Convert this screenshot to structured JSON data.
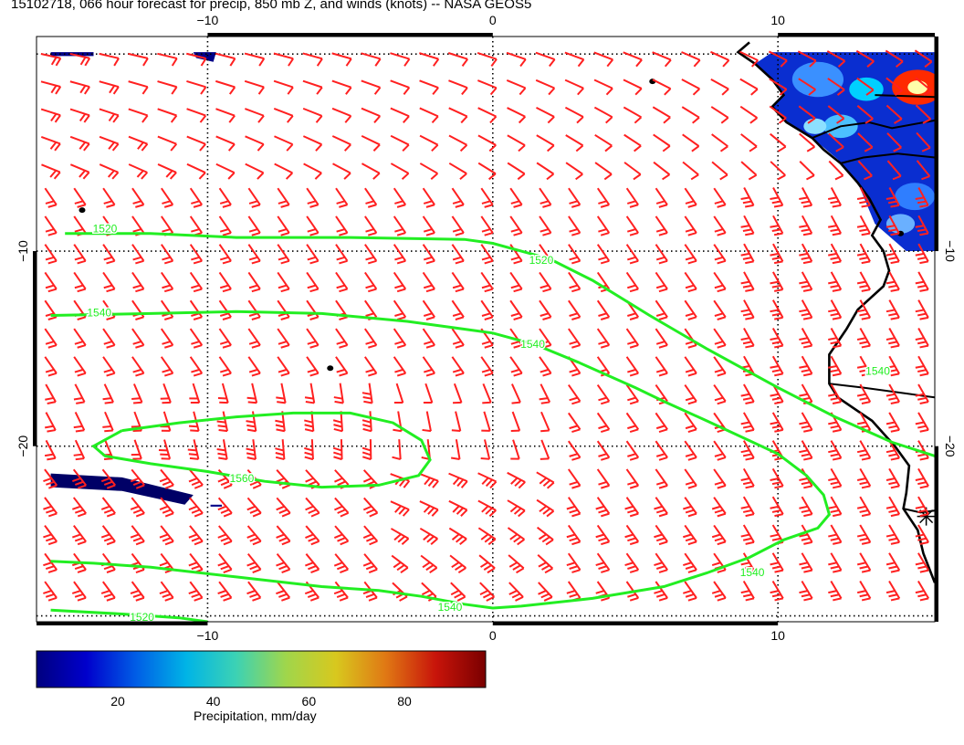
{
  "title": "15102718, 066 hour forecast for precip, 850 mb Z, and winds (knots) -- NASA GEOS5",
  "map": {
    "lon_range": [
      -16,
      15.5
    ],
    "lat_range": [
      -29,
      1
    ],
    "lon_ticks": [
      {
        "value": -10,
        "label": "−10"
      },
      {
        "value": 0,
        "label": "0"
      },
      {
        "value": 10,
        "label": "10"
      }
    ],
    "lat_ticks": [
      {
        "value": -10,
        "label": "−10"
      },
      {
        "value": -20,
        "label": "−20"
      }
    ],
    "grid_style": "dotted",
    "wind_barb_color": "#ff2020",
    "contour_color": "#22ee22",
    "coastline_color": "#000000",
    "contours": [
      {
        "label": "1520",
        "points": [
          [
            -15,
            -9.1
          ],
          [
            -12,
            -9.1
          ],
          [
            -9,
            -9.3
          ],
          [
            -5,
            -9.3
          ],
          [
            -1,
            -9.4
          ],
          [
            0,
            -9.6
          ],
          [
            2,
            -10.4
          ],
          [
            3.5,
            -11.5
          ],
          [
            5.5,
            -13.3
          ],
          [
            7.5,
            -15
          ],
          [
            10,
            -17
          ],
          [
            12,
            -18.5
          ],
          [
            14,
            -19.8
          ],
          [
            15.5,
            -20.5
          ]
        ]
      },
      {
        "label": "1540",
        "points": [
          [
            -15.5,
            -13.3
          ],
          [
            -12,
            -13.2
          ],
          [
            -9,
            -13.1
          ],
          [
            -6,
            -13.2
          ],
          [
            -3,
            -13.6
          ],
          [
            -1,
            -14
          ],
          [
            0,
            -14.2
          ],
          [
            1.5,
            -14.8
          ],
          [
            3,
            -15.7
          ],
          [
            5,
            -17
          ],
          [
            6,
            -17.7
          ],
          [
            7.5,
            -18.7
          ],
          [
            10,
            -20.4
          ],
          [
            11,
            -21.5
          ],
          [
            11.6,
            -22.5
          ],
          [
            11.8,
            -23.5
          ],
          [
            11.4,
            -24.2
          ],
          [
            10.2,
            -24.8
          ],
          [
            9,
            -25.7
          ],
          [
            7.5,
            -26.5
          ],
          [
            6,
            -27.2
          ],
          [
            3.5,
            -27.8
          ],
          [
            1,
            -28.2
          ],
          [
            0,
            -28.3
          ],
          [
            -1,
            -28.1
          ],
          [
            -2.5,
            -27.7
          ],
          [
            -4,
            -27.4
          ],
          [
            -6,
            -27.2
          ],
          [
            -9,
            -26.7
          ],
          [
            -12,
            -26.2
          ],
          [
            -14,
            -26
          ],
          [
            -15.5,
            -25.9
          ]
        ]
      },
      {
        "label": "1560",
        "points": [
          [
            -13,
            -19.2
          ],
          [
            -11,
            -18.8
          ],
          [
            -9,
            -18.5
          ],
          [
            -7,
            -18.3
          ],
          [
            -5,
            -18.3
          ],
          [
            -3.5,
            -18.8
          ],
          [
            -2.5,
            -19.7
          ],
          [
            -2.2,
            -20.7
          ],
          [
            -2.6,
            -21.5
          ],
          [
            -4,
            -22
          ],
          [
            -6,
            -22.1
          ],
          [
            -8,
            -21.8
          ],
          [
            -10,
            -21.3
          ],
          [
            -12,
            -20.9
          ],
          [
            -13.6,
            -20.5
          ],
          [
            -14,
            -20
          ],
          [
            -13,
            -19.2
          ]
        ]
      },
      {
        "label": "1520",
        "points": [
          [
            -15.5,
            -28.4
          ],
          [
            -13,
            -28.6
          ],
          [
            -11,
            -28.8
          ],
          [
            -10,
            -29
          ]
        ]
      }
    ],
    "contour_labels": [
      {
        "text": "1520",
        "at": [
          -13.6,
          -8.9
        ]
      },
      {
        "text": "1520",
        "at": [
          1.7,
          -10.5
        ]
      },
      {
        "text": "1540",
        "at": [
          -13.8,
          -13.2
        ]
      },
      {
        "text": "1540",
        "at": [
          1.4,
          -14.8
        ]
      },
      {
        "text": "1560",
        "at": [
          -8.8,
          -21.7
        ]
      },
      {
        "text": "1540",
        "at": [
          -1.5,
          -28.3
        ]
      },
      {
        "text": "1540",
        "at": [
          9.1,
          -26.5
        ]
      },
      {
        "text": "1520",
        "at": [
          -12.3,
          -28.8
        ]
      },
      {
        "text": "1540",
        "at": [
          13.5,
          -16.2
        ]
      }
    ],
    "coastline": [
      [
        9,
        0.7
      ],
      [
        8.6,
        0.2
      ],
      [
        9.2,
        -0.4
      ],
      [
        9.8,
        -1.2
      ],
      [
        10.2,
        -2
      ],
      [
        9.8,
        -2.6
      ],
      [
        10.3,
        -3.4
      ],
      [
        11.2,
        -4.2
      ],
      [
        11.6,
        -4.8
      ],
      [
        12.2,
        -5.5
      ],
      [
        12.8,
        -6.5
      ],
      [
        13.2,
        -7.3
      ],
      [
        13.6,
        -8.4
      ],
      [
        13.3,
        -9.2
      ],
      [
        13.7,
        -10
      ],
      [
        13.9,
        -11
      ],
      [
        13.7,
        -11.8
      ],
      [
        12.8,
        -13
      ],
      [
        12.4,
        -14
      ],
      [
        11.8,
        -15.3
      ],
      [
        11.8,
        -16.8
      ],
      [
        12.1,
        -17.5
      ],
      [
        13.3,
        -18.7
      ],
      [
        14.1,
        -20
      ],
      [
        14.6,
        -21
      ],
      [
        14.5,
        -22.4
      ],
      [
        14.4,
        -23.2
      ],
      [
        14.9,
        -24.3
      ],
      [
        15.1,
        -25.5
      ],
      [
        15.5,
        -27
      ]
    ],
    "borders": [
      [
        [
          11.2,
          -4.2
        ],
        [
          12.2,
          -3.6
        ],
        [
          13.2,
          -3.4
        ],
        [
          14,
          -3.7
        ],
        [
          15.5,
          -3.3
        ]
      ],
      [
        [
          12.2,
          -5.5
        ],
        [
          13,
          -5.2
        ],
        [
          14.2,
          -5
        ],
        [
          15.5,
          -5.2
        ]
      ],
      [
        [
          11.8,
          -16.8
        ],
        [
          13,
          -17
        ],
        [
          14.5,
          -17.3
        ],
        [
          15.5,
          -17.5
        ]
      ],
      [
        [
          13.4,
          -2
        ],
        [
          15.5,
          -2.1
        ]
      ],
      [
        [
          14.4,
          -23.2
        ],
        [
          15,
          -23.4
        ],
        [
          15.5,
          -23.3
        ]
      ]
    ],
    "precip_colorbar": {
      "label": "Precipitation, mm/day",
      "ticks": [
        {
          "value": 20,
          "label": "20"
        },
        {
          "value": 40,
          "label": "40"
        },
        {
          "value": 60,
          "label": "60"
        },
        {
          "value": 80,
          "label": "80"
        }
      ],
      "min": 3,
      "max": 97,
      "stops": [
        "#00007f",
        "#0000cc",
        "#005ee6",
        "#00b4e6",
        "#3cd2b4",
        "#a0d64b",
        "#d8c81e",
        "#e07814",
        "#c8140a",
        "#7a0000"
      ]
    },
    "precip_areas": [
      {
        "shape": [
          [
            9.8,
            0.2
          ],
          [
            15.5,
            0.2
          ],
          [
            15.5,
            -10
          ],
          [
            14.5,
            -10
          ],
          [
            13.4,
            -8.6
          ],
          [
            12.8,
            -6.5
          ],
          [
            12.1,
            -5.3
          ],
          [
            11.2,
            -4.2
          ],
          [
            10.3,
            -3.4
          ],
          [
            9.8,
            -2.6
          ],
          [
            10.2,
            -2
          ],
          [
            9.8,
            -1.2
          ],
          [
            9.2,
            -0.4
          ]
        ],
        "color": "#0a2ed0"
      },
      {
        "shape": [
          [
            -15.5,
            -21.4
          ],
          [
            -13,
            -21.6
          ],
          [
            -10.5,
            -22.5
          ],
          [
            -10.8,
            -23
          ],
          [
            -13,
            -22.3
          ],
          [
            -15.5,
            -22.1
          ]
        ],
        "color": "#000066"
      },
      {
        "shape": [
          [
            -15.5,
            0.2
          ],
          [
            -14,
            0.2
          ],
          [
            -14,
            0
          ],
          [
            -15.5,
            0
          ]
        ],
        "color": "#000088"
      },
      {
        "shape": [
          [
            -10.5,
            0.2
          ],
          [
            -9.7,
            0.2
          ],
          [
            -9.8,
            -0.3
          ],
          [
            -10.4,
            -0.1
          ]
        ],
        "color": "#000088"
      },
      {
        "shape": [
          [
            -9.9,
            -23
          ],
          [
            -9.5,
            -23
          ],
          [
            -9.5,
            -23.1
          ],
          [
            -9.9,
            -23.1
          ]
        ],
        "color": "#000088"
      }
    ],
    "precip_spots": [
      {
        "at": [
          14.9,
          -1.6
        ],
        "r": 0.9,
        "color": "#ff2a00"
      },
      {
        "at": [
          14.9,
          -1.6
        ],
        "r": 0.35,
        "color": "#ffffaa"
      },
      {
        "at": [
          13.1,
          -1.7
        ],
        "r": 0.6,
        "color": "#00d0ff"
      },
      {
        "at": [
          11.4,
          -1.2
        ],
        "r": 0.9,
        "color": "#3a90ff"
      },
      {
        "at": [
          12.2,
          -3.6
        ],
        "r": 0.6,
        "color": "#4cc0ff"
      },
      {
        "at": [
          11.3,
          -3.6
        ],
        "r": 0.4,
        "color": "#8ce0ff"
      },
      {
        "at": [
          14.8,
          -7.2
        ],
        "r": 0.7,
        "color": "#2f7eff"
      },
      {
        "at": [
          14.3,
          -8.6
        ],
        "r": 0.5,
        "color": "#6ab0ff"
      }
    ],
    "islands": [
      [
        -14.4,
        -7.9
      ],
      [
        -5.7,
        -16
      ],
      [
        5.6,
        -1.3
      ],
      [
        14.3,
        -9.1
      ]
    ],
    "station_marker": [
      15.2,
      -23.6
    ]
  }
}
